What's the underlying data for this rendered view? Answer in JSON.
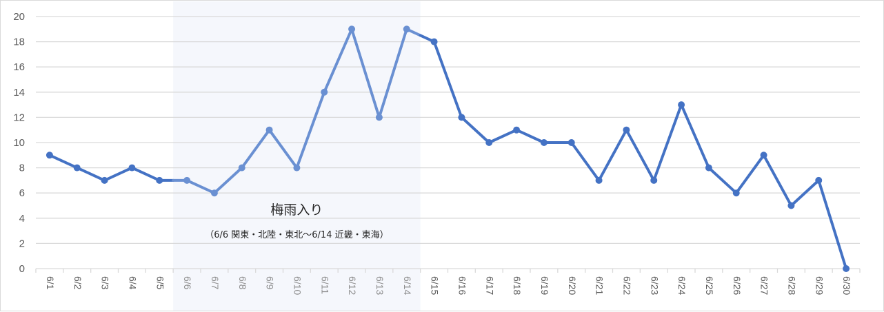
{
  "chart_data": {
    "type": "line",
    "title": "",
    "xlabel": "",
    "ylabel": "",
    "ylim": [
      0,
      20
    ],
    "yticks": [
      0,
      2,
      4,
      6,
      8,
      10,
      12,
      14,
      16,
      18,
      20
    ],
    "grid": true,
    "legend": null,
    "categories": [
      "6/1",
      "6/2",
      "6/3",
      "6/4",
      "6/5",
      "6/6",
      "6/7",
      "6/8",
      "6/9",
      "6/10",
      "6/11",
      "6/12",
      "6/13",
      "6/14",
      "6/15",
      "6/16",
      "6/17",
      "6/18",
      "6/19",
      "6/20",
      "6/21",
      "6/22",
      "6/23",
      "6/24",
      "6/25",
      "6/26",
      "6/27",
      "6/28",
      "6/29",
      "6/30"
    ],
    "series": [
      {
        "name": "",
        "color": "#4472c4",
        "highlight_color": "#6a90d2",
        "values": [
          9,
          8,
          7,
          8,
          7,
          7,
          6,
          8,
          11,
          8,
          14,
          19,
          12,
          19,
          18,
          12,
          10,
          11,
          10,
          10,
          7,
          11,
          7,
          13,
          8,
          6,
          9,
          5,
          7,
          0
        ]
      }
    ],
    "highlight_band": {
      "from": "6/6",
      "to": "6/14",
      "color": "#f5f7fc"
    },
    "annotations": [
      {
        "text": "梅雨入り",
        "role": "title"
      },
      {
        "text": "（6/6 関東・北陸・東北～6/14 近畿・東海）",
        "role": "subtitle"
      }
    ]
  }
}
